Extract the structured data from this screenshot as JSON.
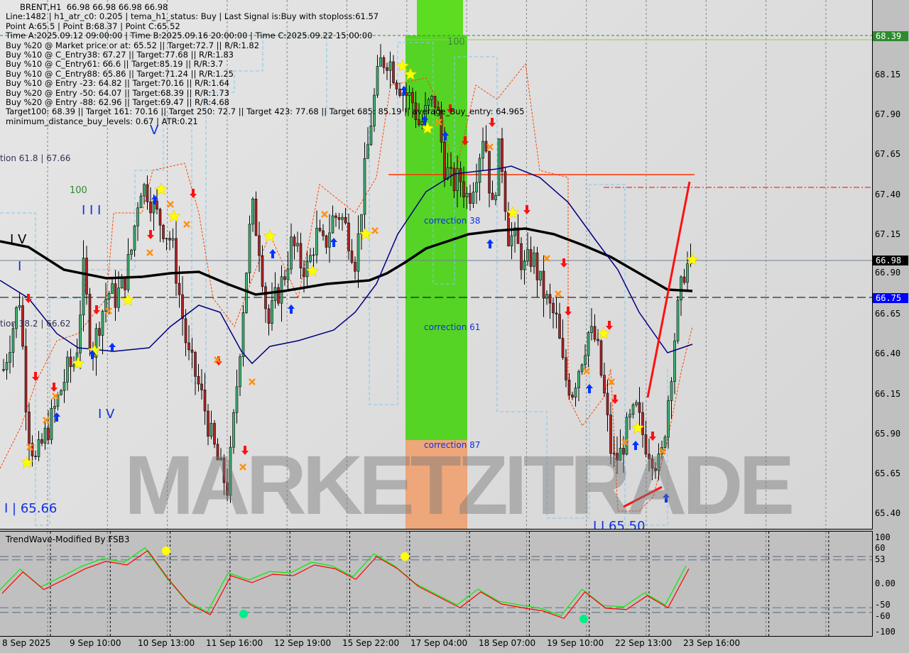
{
  "header": {
    "symbol_line": "BRENT,H1  66.98 66.98 66.98 66.98",
    "lines": [
      "Line:1482 | h1_atr_c0: 0.205 | tema_h1_status: Buy | Last Signal is:Buy with stoploss:61.57",
      "Point A:65.5 | Point B:68.37 | Point C:65.52",
      "Time A:2025.09.12 09:00:00 | Time B:2025.09.16 20:00:00 | Time C:2025.09.22 15:00:00",
      "Buy %20 @ Market price or at: 65.52 || Target:72.7 || R/R:1.82",
      "Buy %10 @ C_Entry38: 67.27 || Target:77.68 || R/R:1.83",
      "Buy %10 @ C_Entry61: 66.6 || Target:85.19 || R/R:3.7",
      "Buy %10 @ C_Entry88: 65.86 || Target:71.24 || R/R:1.25",
      "Buy %10 @ Entry -23: 64.82 || Target:70.16 || R/R:1.64",
      "Buy %20 @ Entry -50: 64.07 || Target:68.39 || R/R:1.73",
      "Buy %20 @ Entry -88: 62.96 || Target:69.47 || R/R:4.68",
      "Target100: 68.39 || Target 161: 70.16 || Target 250: 72.7 || Target 423: 77.68 || Target 685: 85.19 || average_Buy_entry: 64.965",
      "minimum_distance_buy_levels: 0.67 | ATR:0.21"
    ]
  },
  "labels": {
    "fib618": "tion 61.8 | 67.66",
    "fib382": "tion 38.2 | 66.62",
    "hundred_left": "100",
    "hundred_zone": "100",
    "corr38": "correction 38",
    "corr61": "correction 61",
    "corr87": "correction 87",
    "wave_v": "V",
    "wave_iii": "I I I",
    "wave_iv_black": "I V",
    "wave_i": "I",
    "wave_iv_blue": "I V",
    "wave_i_price": "I | 65.66",
    "wave_iii_price": "I I 65.50",
    "watermark": "MARKETZITRADE"
  },
  "price_axis": {
    "ticks": [
      "68.15",
      "67.90",
      "67.65",
      "67.40",
      "67.15",
      "66.90",
      "66.65",
      "66.40",
      "66.15",
      "65.90",
      "65.65",
      "65.40"
    ],
    "tag_target": "68.39",
    "tag_target_color": "#2e8b2e",
    "tag_current": "66.98",
    "tag_current_color": "#000000",
    "tag_blue": "66.75",
    "tag_blue_color": "#0000ff"
  },
  "indicator": {
    "title": "TrendWave-Modified By FSB3",
    "ticks": [
      "100",
      "60",
      "53",
      "0.00",
      "-50",
      "-60",
      "-100"
    ],
    "colors": {
      "fast": "#00ee00",
      "slow": "#ff0000"
    }
  },
  "time_axis": [
    "8 Sep 2025",
    "9 Sep 10:00",
    "10 Sep 13:00",
    "11 Sep 16:00",
    "12 Sep 19:00",
    "15 Sep 22:00",
    "17 Sep 04:00",
    "18 Sep 07:00",
    "19 Sep 10:00",
    "22 Sep 13:00",
    "23 Sep 16:00"
  ],
  "chart_data": {
    "type": "candlestick",
    "symbol": "BRENT",
    "timeframe": "H1",
    "ylim": [
      65.3,
      68.5
    ],
    "close_path": [
      66.3,
      66.53,
      66.75,
      65.95,
      65.72,
      65.86,
      65.99,
      66.15,
      66.3,
      66.35,
      66.93,
      66.39,
      66.61,
      66.79,
      66.75,
      66.84,
      67.06,
      67.46,
      67.42,
      67.28,
      67.19,
      67.1,
      66.75,
      66.39,
      66.26,
      66.08,
      65.86,
      65.68,
      65.55,
      66.13,
      66.75,
      67.33,
      67.06,
      66.57,
      66.75,
      66.88,
      67.1,
      66.97,
      66.93,
      67.15,
      67.06,
      67.24,
      67.28,
      67.15,
      66.97,
      67.5,
      67.91,
      68.22,
      68.26,
      68.13,
      68.04,
      67.99,
      67.82,
      67.95,
      67.99,
      67.59,
      67.46,
      67.5,
      67.37,
      67.55,
      67.82,
      67.28,
      67.73,
      67.15,
      67.1,
      66.93,
      67.02,
      66.84,
      66.7,
      66.61,
      66.26,
      66.17,
      66.35,
      66.53,
      66.48,
      66.13,
      65.72,
      65.77,
      65.95,
      66.04,
      65.86,
      65.77,
      65.68,
      66.13,
      66.61,
      66.93,
      66.98
    ],
    "levels": {
      "target100": 68.39,
      "current": 66.98,
      "blue_line": 66.75,
      "red_line": 67.5,
      "red_dashdot": 67.44
    },
    "oscillator": {
      "ylim": [
        -100,
        100
      ],
      "levels": [
        60,
        53,
        -50,
        -60
      ],
      "values": [
        -19,
        27,
        -11,
        11,
        34,
        50,
        42,
        73,
        11,
        -42,
        -65,
        19,
        4,
        22,
        19,
        42,
        34,
        11,
        60,
        34,
        -4,
        -27,
        -50,
        -16,
        -42,
        -50,
        -57,
        -73,
        -16,
        -51,
        -54,
        -24,
        -50,
        34
      ]
    }
  }
}
